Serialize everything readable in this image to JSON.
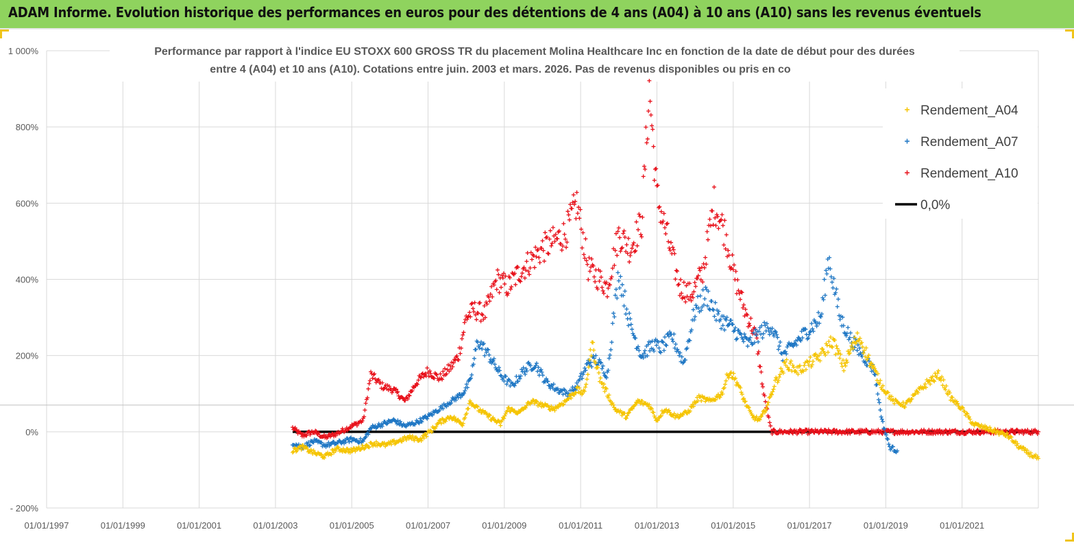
{
  "header": {
    "banner": "ADAM Informe. Evolution historique des performances en euros pour des détentions de 4 ans (A04) à 10 ans (A10) sans les revenus éventuels",
    "banner_color": "#8fd35e"
  },
  "chart_data": {
    "type": "scatter",
    "title_line1": "Performance par rapport à l'indice EU STOXX 600 GROSS TR  du placement Molina Healthcare Inc en fonction de la date de début pour des durées",
    "title_line2": "entre 4 (A04) et 10 ans (A10). Cotations entre juin. 2003 et mars. 2026. Pas de revenus disponibles ou pris en co",
    "xlabel": "",
    "ylabel": "",
    "x_ticks": [
      "01/01/1997",
      "01/01/1999",
      "01/01/2001",
      "01/01/2003",
      "01/01/2005",
      "01/01/2007",
      "01/01/2009",
      "01/01/2011",
      "01/01/2013",
      "01/01/2015",
      "01/01/2017",
      "01/01/2019",
      "01/01/2021"
    ],
    "x_range": [
      1997.0,
      2023.0
    ],
    "y_ticks": [
      "1 000%",
      "800%",
      "600%",
      "400%",
      "200%",
      "0%",
      "- 200%"
    ],
    "y_tick_values": [
      1000,
      800,
      600,
      400,
      200,
      0,
      -200
    ],
    "ylim": [
      -200,
      1000
    ],
    "grid": true,
    "legend_position": "top-right",
    "series": [
      {
        "name": "Rendement_A04",
        "color": "#f5c400",
        "marker": "+",
        "x": [
          2003.45,
          2003.7,
          2004.0,
          2004.3,
          2004.6,
          2005.0,
          2005.3,
          2005.6,
          2005.9,
          2006.2,
          2006.5,
          2006.8,
          2007.1,
          2007.3,
          2007.6,
          2007.9,
          2008.1,
          2008.3,
          2008.6,
          2008.9,
          2009.1,
          2009.4,
          2009.7,
          2010.0,
          2010.3,
          2010.6,
          2010.9,
          2011.1,
          2011.3,
          2011.5,
          2011.7,
          2011.9,
          2012.2,
          2012.5,
          2012.8,
          2013.0,
          2013.2,
          2013.5,
          2013.8,
          2014.1,
          2014.4,
          2014.7,
          2014.9,
          2015.1,
          2015.3,
          2015.5,
          2015.7,
          2015.9,
          2016.1,
          2016.4,
          2016.7,
          2017.0,
          2017.3,
          2017.6,
          2017.9,
          2018.1,
          2018.3,
          2018.6,
          2018.9,
          2019.2,
          2019.5,
          2019.8,
          2020.1,
          2020.4,
          2020.7,
          2021.0,
          2021.3,
          2021.6,
          2021.9,
          2022.2,
          2022.5,
          2022.8,
          2023.0
        ],
        "y": [
          -50,
          -40,
          -55,
          -65,
          -45,
          -50,
          -40,
          -30,
          -35,
          -25,
          -15,
          -20,
          5,
          25,
          40,
          20,
          80,
          60,
          40,
          20,
          60,
          50,
          80,
          70,
          60,
          80,
          110,
          100,
          230,
          140,
          100,
          60,
          40,
          80,
          70,
          30,
          60,
          40,
          50,
          90,
          80,
          100,
          160,
          130,
          80,
          40,
          30,
          70,
          130,
          180,
          160,
          180,
          200,
          240,
          170,
          220,
          250,
          180,
          120,
          80,
          70,
          100,
          130,
          150,
          90,
          60,
          20,
          10,
          0,
          -10,
          -40,
          -60,
          -70
        ]
      },
      {
        "name": "Rendement_A07",
        "color": "#1f77c4",
        "marker": "+",
        "x": [
          2003.45,
          2003.7,
          2004.0,
          2004.3,
          2004.6,
          2005.0,
          2005.3,
          2005.5,
          2005.8,
          2006.1,
          2006.4,
          2006.7,
          2007.0,
          2007.3,
          2007.6,
          2007.9,
          2008.1,
          2008.3,
          2008.6,
          2008.9,
          2009.2,
          2009.5,
          2009.8,
          2010.1,
          2010.4,
          2010.7,
          2010.9,
          2011.2,
          2011.4,
          2011.7,
          2012.0,
          2012.3,
          2012.6,
          2012.9,
          2013.1,
          2013.4,
          2013.7,
          2014.0,
          2014.3,
          2014.6,
          2014.9,
          2015.1,
          2015.4,
          2015.7,
          2016.0,
          2016.3,
          2016.6,
          2016.9,
          2017.1,
          2017.3,
          2017.5,
          2017.8,
          2018.1,
          2018.4,
          2018.7,
          2018.9,
          2019.1,
          2019.3
        ],
        "y": [
          -30,
          -40,
          -25,
          -35,
          -30,
          -20,
          -25,
          10,
          20,
          30,
          15,
          25,
          40,
          60,
          80,
          100,
          130,
          240,
          200,
          150,
          120,
          160,
          180,
          130,
          110,
          100,
          120,
          180,
          190,
          150,
          420,
          280,
          200,
          230,
          220,
          250,
          180,
          320,
          360,
          300,
          280,
          260,
          230,
          260,
          280,
          200,
          230,
          260,
          280,
          300,
          460,
          300,
          240,
          200,
          160,
          30,
          -40,
          -50
        ]
      },
      {
        "name": "Rendement_A10",
        "color": "#e8101a",
        "marker": "+",
        "x": [
          2003.45,
          2003.7,
          2004.0,
          2004.3,
          2004.6,
          2005.0,
          2005.3,
          2005.5,
          2005.8,
          2006.1,
          2006.4,
          2006.7,
          2007.0,
          2007.3,
          2007.6,
          2007.8,
          2008.0,
          2008.2,
          2008.5,
          2008.8,
          2009.1,
          2009.4,
          2009.7,
          2010.0,
          2010.3,
          2010.6,
          2010.9,
          2011.2,
          2011.4,
          2011.7,
          2012.0,
          2012.3,
          2012.6,
          2012.8,
          2013.0,
          2013.3,
          2013.6,
          2013.9,
          2014.2,
          2014.5,
          2014.8,
          2015.0,
          2015.3,
          2015.6,
          2015.8,
          2016.0,
          2016.2,
          2016.5,
          2017.0,
          2017.5,
          2018.0,
          2018.5,
          2019.0,
          2019.5,
          2020.0,
          2020.5,
          2021.0,
          2021.5,
          2022.0,
          2022.5,
          2023.0
        ],
        "y": [
          10,
          -10,
          0,
          -15,
          -5,
          15,
          30,
          150,
          120,
          110,
          80,
          130,
          160,
          140,
          170,
          200,
          300,
          320,
          310,
          400,
          380,
          420,
          450,
          480,
          500,
          520,
          600,
          430,
          410,
          380,
          520,
          480,
          550,
          900,
          620,
          500,
          380,
          360,
          420,
          600,
          520,
          420,
          320,
          250,
          100,
          0,
          0,
          0,
          0,
          0,
          0,
          0,
          0,
          0,
          0,
          0,
          0,
          0,
          0,
          0,
          0
        ]
      },
      {
        "name": "0,0%",
        "color": "#000000",
        "marker": "line",
        "x": [
          2003.45,
          2023.0
        ],
        "y": [
          0,
          0
        ]
      }
    ]
  }
}
